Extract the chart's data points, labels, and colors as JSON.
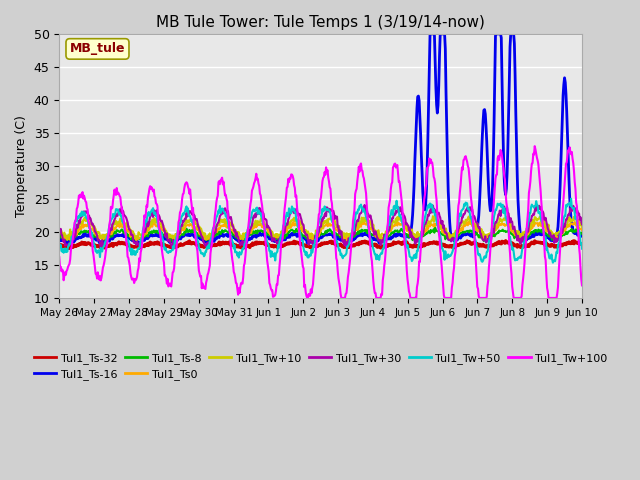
{
  "title": "MB Tule Tower: Tule Temps 1 (3/19/14-now)",
  "ylabel": "Temperature (C)",
  "ylim": [
    10,
    50
  ],
  "xlim": [
    0,
    15
  ],
  "legend_label": "MB_tule",
  "series_names": [
    "Tul1_Ts-32",
    "Tul1_Ts-16",
    "Tul1_Ts-8",
    "Tul1_Ts0",
    "Tul1_Tw+10",
    "Tul1_Tw+30",
    "Tul1_Tw+50",
    "Tul1_Tw+100"
  ],
  "series_colors": [
    "#cc0000",
    "#0000ee",
    "#00bb00",
    "#ffaa00",
    "#cccc00",
    "#aa00aa",
    "#00cccc",
    "#ff00ff"
  ],
  "series_lws": [
    2.5,
    2.0,
    1.5,
    1.5,
    1.5,
    1.5,
    1.5,
    1.5
  ],
  "xtick_labels": [
    "May 26",
    "May 27",
    "May 28",
    "May 29",
    "May 30",
    "May 31",
    "Jun 1",
    "Jun 2",
    "Jun 3",
    "Jun 4",
    "Jun 5",
    "Jun 6",
    "Jun 7",
    "Jun 8",
    "Jun 9",
    "Jun 10"
  ],
  "ytick_labels": [
    10,
    15,
    20,
    25,
    30,
    35,
    40,
    45,
    50
  ]
}
